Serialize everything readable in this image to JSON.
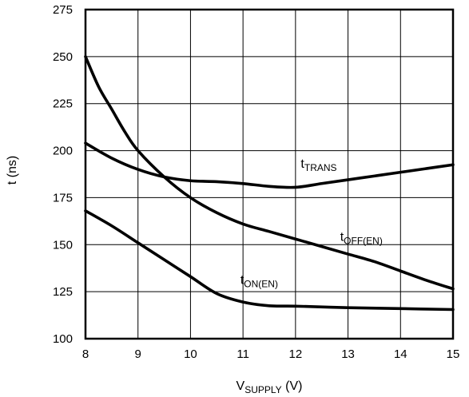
{
  "chart_data": {
    "type": "line",
    "xlabel": "V",
    "xlabel_sub": "SUPPLY",
    "xlabel_unit": " (V)",
    "ylabel": "t (ns)",
    "xlim": [
      8,
      15
    ],
    "ylim": [
      100,
      275
    ],
    "xticks": [
      8,
      9,
      10,
      11,
      12,
      13,
      14,
      15
    ],
    "yticks": [
      100,
      125,
      150,
      175,
      200,
      225,
      250,
      275
    ],
    "grid": true,
    "series": [
      {
        "name": "t",
        "name_sub": "TRANS",
        "label_at": [
          12.1,
          191
        ],
        "x": [
          8.0,
          8.5,
          9.0,
          9.5,
          10.0,
          10.5,
          11.0,
          11.5,
          12.0,
          12.5,
          13.0,
          13.5,
          14.0,
          14.5,
          15.0
        ],
        "y": [
          204,
          196,
          190,
          186,
          184,
          183.5,
          182.5,
          181,
          180.5,
          182.5,
          184.5,
          186.5,
          188.5,
          190.5,
          192.5
        ]
      },
      {
        "name": "t",
        "name_sub": "OFF(EN)",
        "label_at": [
          12.85,
          152
        ],
        "x": [
          8.0,
          8.25,
          8.5,
          8.75,
          9.0,
          9.5,
          10.0,
          10.5,
          11.0,
          11.5,
          12.0,
          12.5,
          13.0,
          13.5,
          14.0,
          14.5,
          15.0
        ],
        "y": [
          250,
          234,
          222,
          210,
          200,
          186,
          175,
          167,
          161,
          157,
          153,
          149,
          145,
          141,
          136,
          131,
          126.5
        ]
      },
      {
        "name": "t",
        "name_sub": "ON(EN)",
        "label_at": [
          10.95,
          129
        ],
        "x": [
          8.0,
          8.5,
          9.0,
          9.5,
          10.0,
          10.5,
          11.0,
          11.5,
          12.0,
          13.0,
          14.0,
          15.0
        ],
        "y": [
          168,
          160,
          151,
          142,
          133,
          124,
          119.5,
          117.5,
          117.3,
          116.5,
          116,
          115.5
        ]
      }
    ]
  }
}
